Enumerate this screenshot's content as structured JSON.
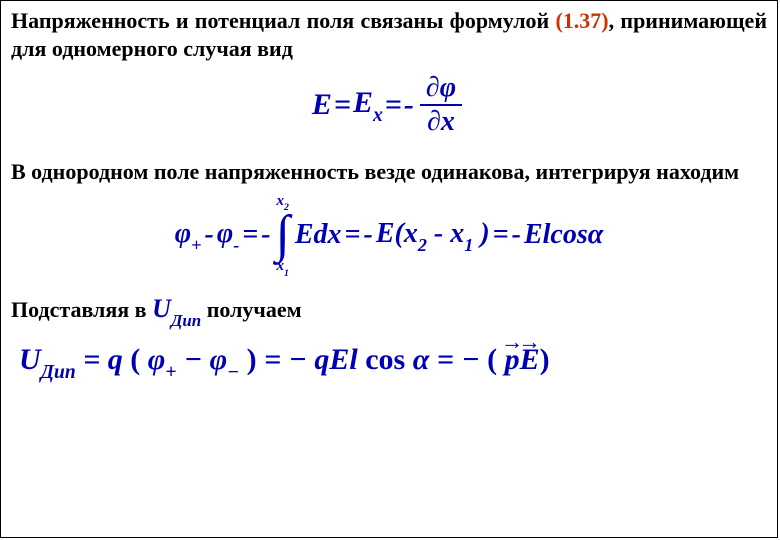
{
  "colors": {
    "text": "#000000",
    "formula": "#0000b3",
    "reference": "#cc3300",
    "border": "#000000",
    "background": "#ffffff"
  },
  "typography": {
    "body_fontsize": 22,
    "body_weight": "bold",
    "formula_fontsize_main": 30,
    "formula_fontsize_integral": 28,
    "font_family": "Times New Roman"
  },
  "paragraphs": {
    "p1_a": "Напряженность и потенциал поля связаны формулой ",
    "p1_ref": "(1.37)",
    "p1_b": ", принимающей для одномерного случая вид",
    "p2": "В однородном поле напряженность везде одинакова, интегрируя находим",
    "p3_a": "Подставляя в ",
    "p3_b": " получаем"
  },
  "formula1": {
    "lhs_E": "E",
    "eq": " = ",
    "Ex_E": "E",
    "Ex_sub": "x",
    "eq2": " = ",
    "minus": "- ",
    "num_partial": "∂",
    "num_phi": "φ",
    "den_partial": "∂",
    "den_x": "x"
  },
  "formula2": {
    "phi_plus": "φ",
    "plus_sub": "+",
    "minus1": " - ",
    "phi_minus": "φ",
    "minus_sub": "-",
    "eq1": " = ",
    "neg1": "- ",
    "int_ub_x": "x",
    "int_ub_2": "2",
    "int_sym": "∫",
    "int_lb_x": "x",
    "int_lb_1": "1",
    "Edx": "Edx",
    "eq2": " = ",
    "neg2": "-",
    "Eparen": "E(x",
    "sub2": "2",
    "minus2": " - x",
    "sub1": "1",
    "close": " )",
    "eq3": " = ",
    "neg3": "-",
    "Elcos": "Elcos",
    "alpha": "α"
  },
  "inline_U": {
    "U": "U",
    "sub": "Дип"
  },
  "formula3": {
    "U": "U",
    "U_sub": "Дип",
    "eq1": " = ",
    "q": "q",
    "open": "(",
    "phi1": "φ",
    "sub_plus": "+",
    "minus": " − ",
    "phi2": "φ",
    "sub_minus": "−",
    "close": ")",
    "eq2": " = ",
    "neg1": "−",
    "qEl": "qEl ",
    "cos": "cos ",
    "alpha": "α",
    "eq3": " = ",
    "neg2": "−",
    "open2": "(",
    "p_vec": "p",
    "E_vec": "E",
    "close2": ")"
  }
}
